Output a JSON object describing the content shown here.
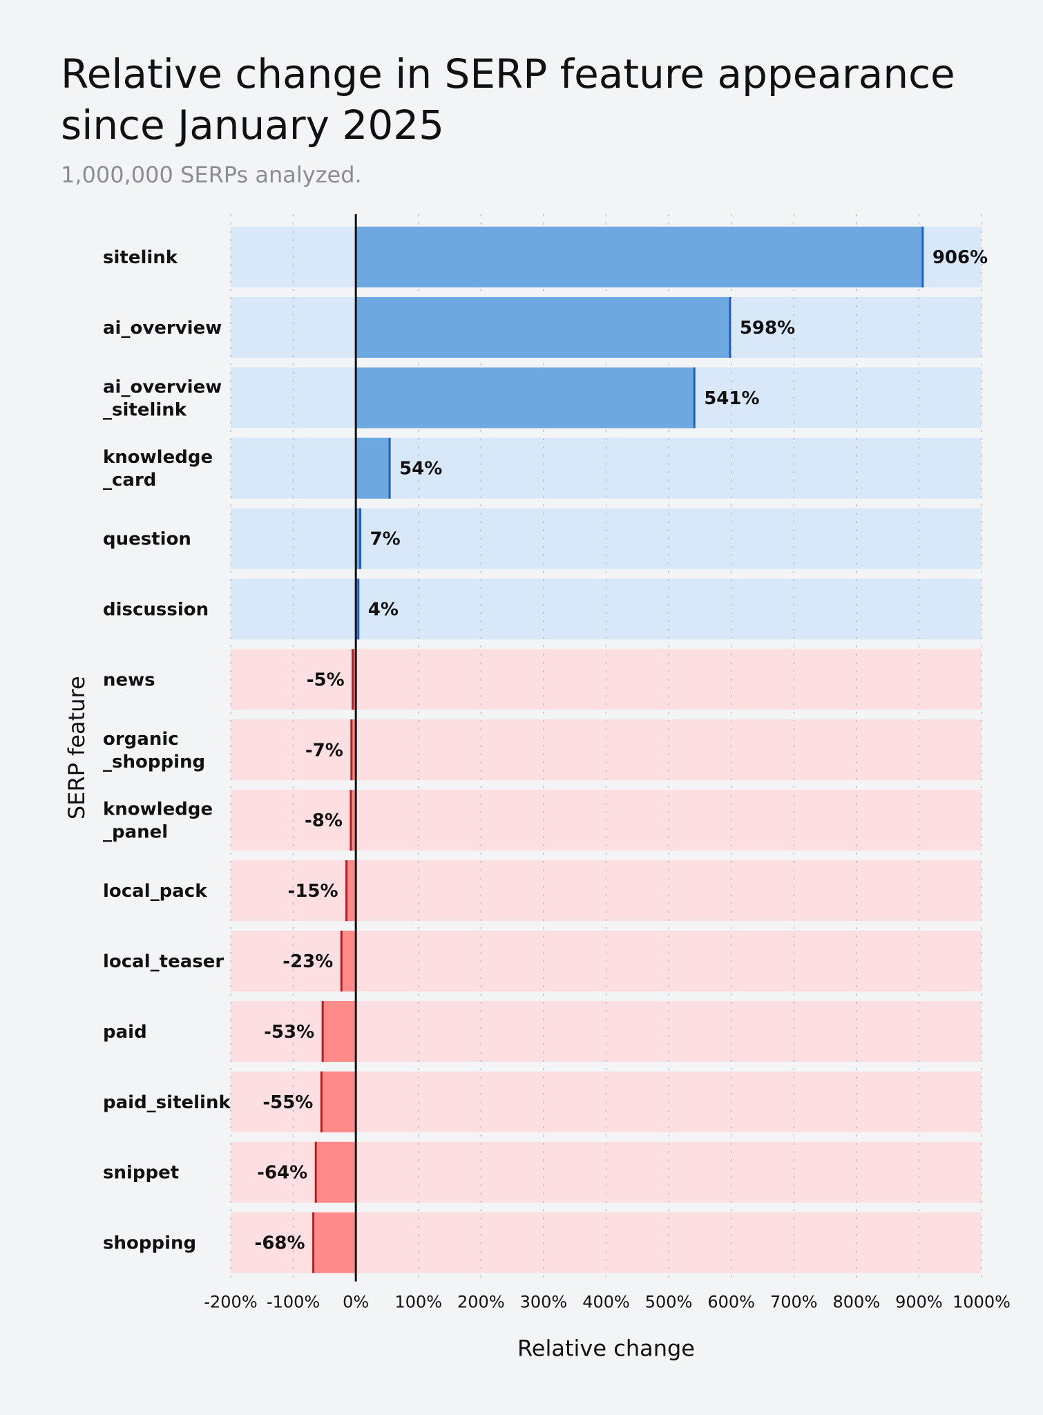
{
  "chart_data": {
    "type": "bar",
    "orientation": "horizontal",
    "title": "Relative change in SERP feature appearance since January 2025",
    "subtitle": "1,000,000 SERPs analyzed.",
    "xlabel": "Relative change",
    "ylabel": "SERP feature",
    "xlim": [
      -200,
      1000
    ],
    "x_ticks": [
      -200,
      -100,
      0,
      100,
      200,
      300,
      400,
      500,
      600,
      700,
      800,
      900,
      1000
    ],
    "x_tick_labels": [
      "-200%",
      "-100%",
      "0%",
      "100%",
      "200%",
      "300%",
      "400%",
      "500%",
      "600%",
      "700%",
      "800%",
      "900%",
      "1000%"
    ],
    "grid": "vertical dotted",
    "categories": [
      [
        "sitelink"
      ],
      [
        "ai_overview"
      ],
      [
        "ai_overview",
        "_sitelink"
      ],
      [
        "knowledge",
        "_card"
      ],
      [
        "question"
      ],
      [
        "discussion"
      ],
      [
        "news"
      ],
      [
        "organic",
        "_shopping"
      ],
      [
        "knowledge",
        "_panel"
      ],
      [
        "local_pack"
      ],
      [
        "local_teaser"
      ],
      [
        "paid"
      ],
      [
        "paid_sitelink"
      ],
      [
        "snippet"
      ],
      [
        "shopping"
      ]
    ],
    "values": [
      906,
      598,
      541,
      54,
      7,
      4,
      -5,
      -7,
      -8,
      -15,
      -23,
      -53,
      -55,
      -64,
      -68
    ],
    "value_labels": [
      "906%",
      "598%",
      "541%",
      "54%",
      "7%",
      "4%",
      "-5%",
      "-7%",
      "-8%",
      "-15%",
      "-23%",
      "-53%",
      "-55%",
      "-64%",
      "-68%"
    ],
    "colors": {
      "positive_bar": "#6ea8e0",
      "positive_edge": "#1f5fbf",
      "positive_band": "#d9e8f9",
      "negative_bar": "#ff8a8a",
      "negative_edge": "#b81c1c",
      "negative_band": "#fddfe1"
    }
  }
}
